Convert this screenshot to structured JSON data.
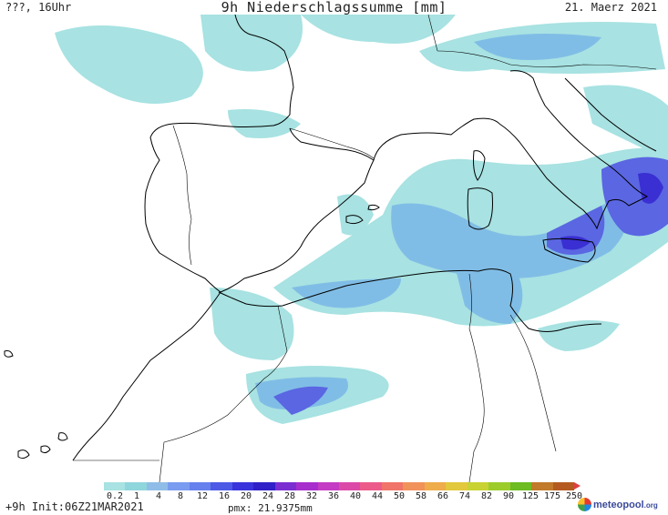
{
  "header": {
    "left": "???, 16Uhr",
    "title": "9h Niederschlagssumme [mm]",
    "date": "21. Maerz 2021"
  },
  "legend": {
    "values": [
      "0.2",
      "1",
      "4",
      "8",
      "12",
      "16",
      "20",
      "24",
      "28",
      "32",
      "36",
      "40",
      "44",
      "50",
      "58",
      "66",
      "74",
      "82",
      "90",
      "125",
      "175",
      "250"
    ],
    "colors": [
      "#a8e2e2",
      "#8fd6dc",
      "#90bde8",
      "#7a9cf0",
      "#6680ee",
      "#4d5ae6",
      "#3a34dc",
      "#3020c8",
      "#7a2ed2",
      "#a62ecc",
      "#c43cc4",
      "#dc4aa8",
      "#ec5a8a",
      "#f0746a",
      "#f0925a",
      "#eeac4a",
      "#e2c83c",
      "#c8d232",
      "#9ccc2c",
      "#6cbc22",
      "#c07a2a",
      "#b45a20"
    ]
  },
  "footer": {
    "run": "+9h  Init:06Z21MAR2021",
    "pmx": "pmx: 21.9375mm",
    "logo_name": "meteopool",
    "logo_suffix": ".org"
  },
  "map": {
    "precip_light": "#a8e2e2",
    "precip_mid": "#80bde6",
    "precip_heavy": "#5a66e2",
    "precip_max": "#3a2fd2",
    "coastline": "#000000"
  }
}
